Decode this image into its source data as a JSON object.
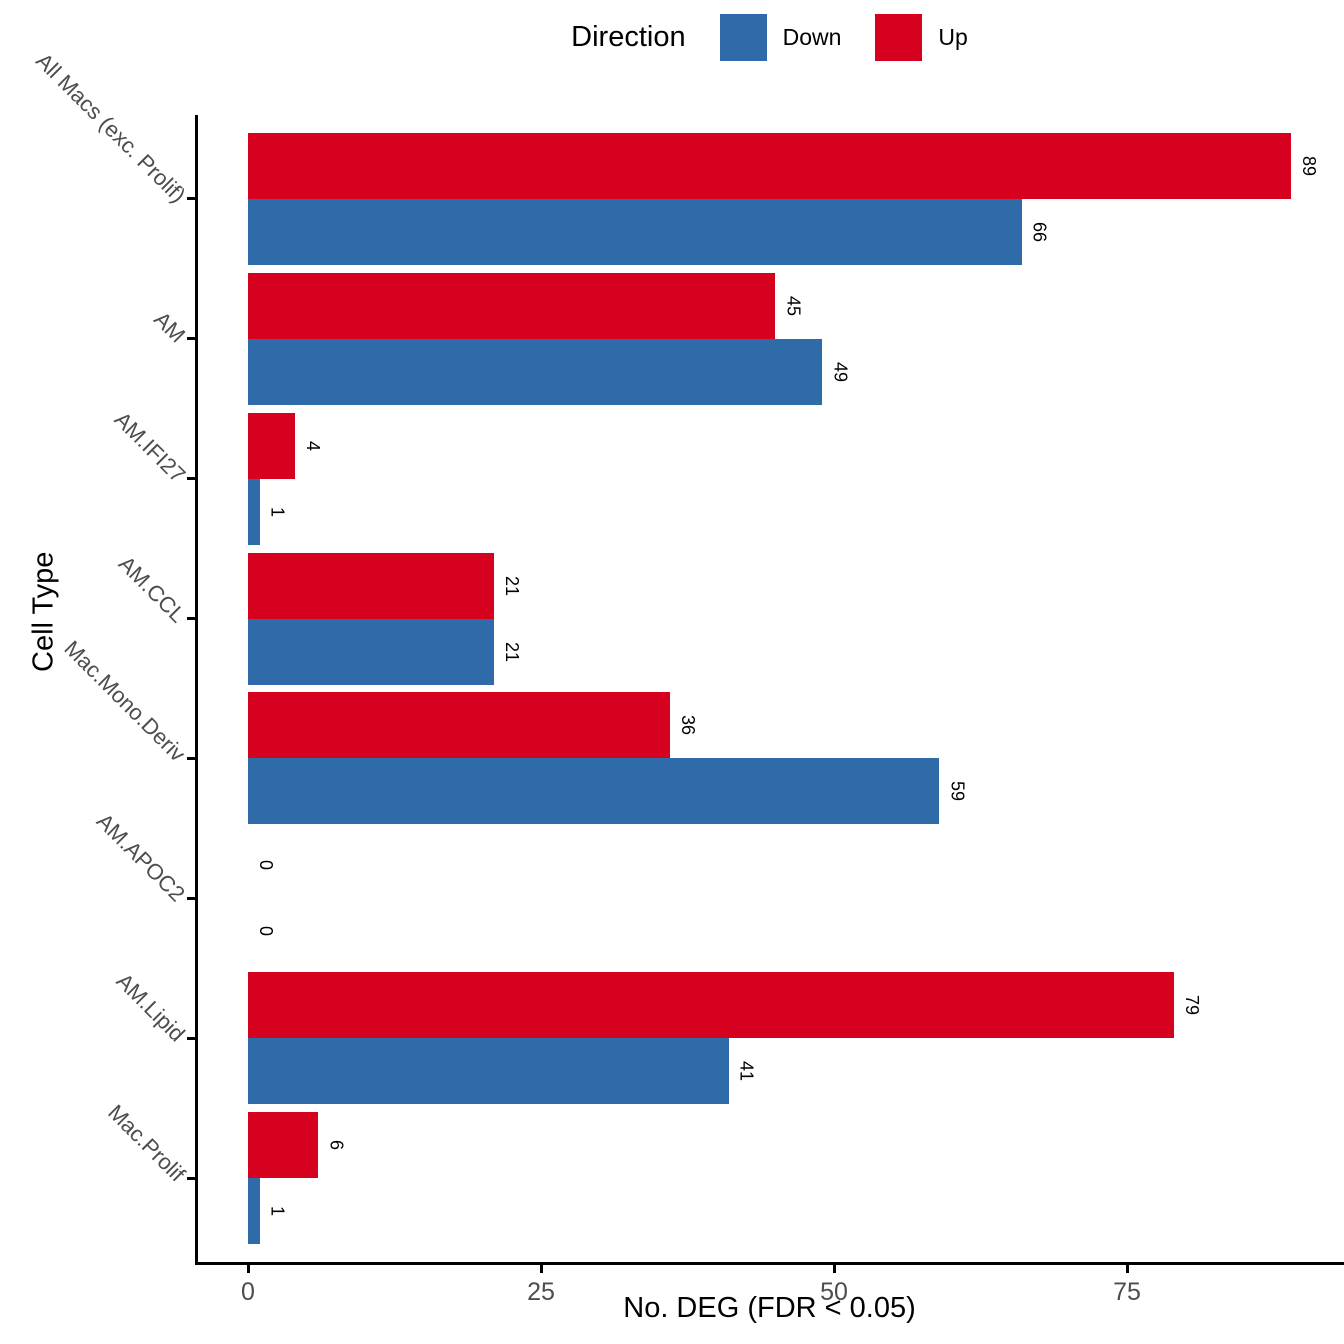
{
  "legend": {
    "title": "Direction",
    "items": [
      {
        "label": "Down",
        "color": "#2E6BA8"
      },
      {
        "label": "Up",
        "color": "#D6001F"
      }
    ]
  },
  "axes": {
    "xlabel": "No. DEG (FDR < 0.05)",
    "ylabel": "Cell Type"
  },
  "chart_data": {
    "type": "bar",
    "orientation": "horizontal",
    "title": "",
    "xlabel": "No. DEG (FDR < 0.05)",
    "ylabel": "Cell Type",
    "categories": [
      "All Macs (exc. Prolif)",
      "AM",
      "AM.IFI27",
      "AM.CCL",
      "Mac.Mono.Deriv",
      "AM.APOC2",
      "AM.Lipid",
      "Mac.Prolif"
    ],
    "series": [
      {
        "name": "Up",
        "color": "#D6001F",
        "values": [
          89,
          45,
          4,
          21,
          36,
          0,
          79,
          6
        ]
      },
      {
        "name": "Down",
        "color": "#2E6BA8",
        "values": [
          66,
          49,
          1,
          21,
          59,
          0,
          41,
          1
        ]
      }
    ],
    "bar_value_labels": true,
    "x_ticks": [
      0,
      25,
      50,
      75
    ],
    "xlim": [
      0,
      93.5
    ],
    "grid": false,
    "legend_position": "top",
    "legend_title": "Direction"
  }
}
